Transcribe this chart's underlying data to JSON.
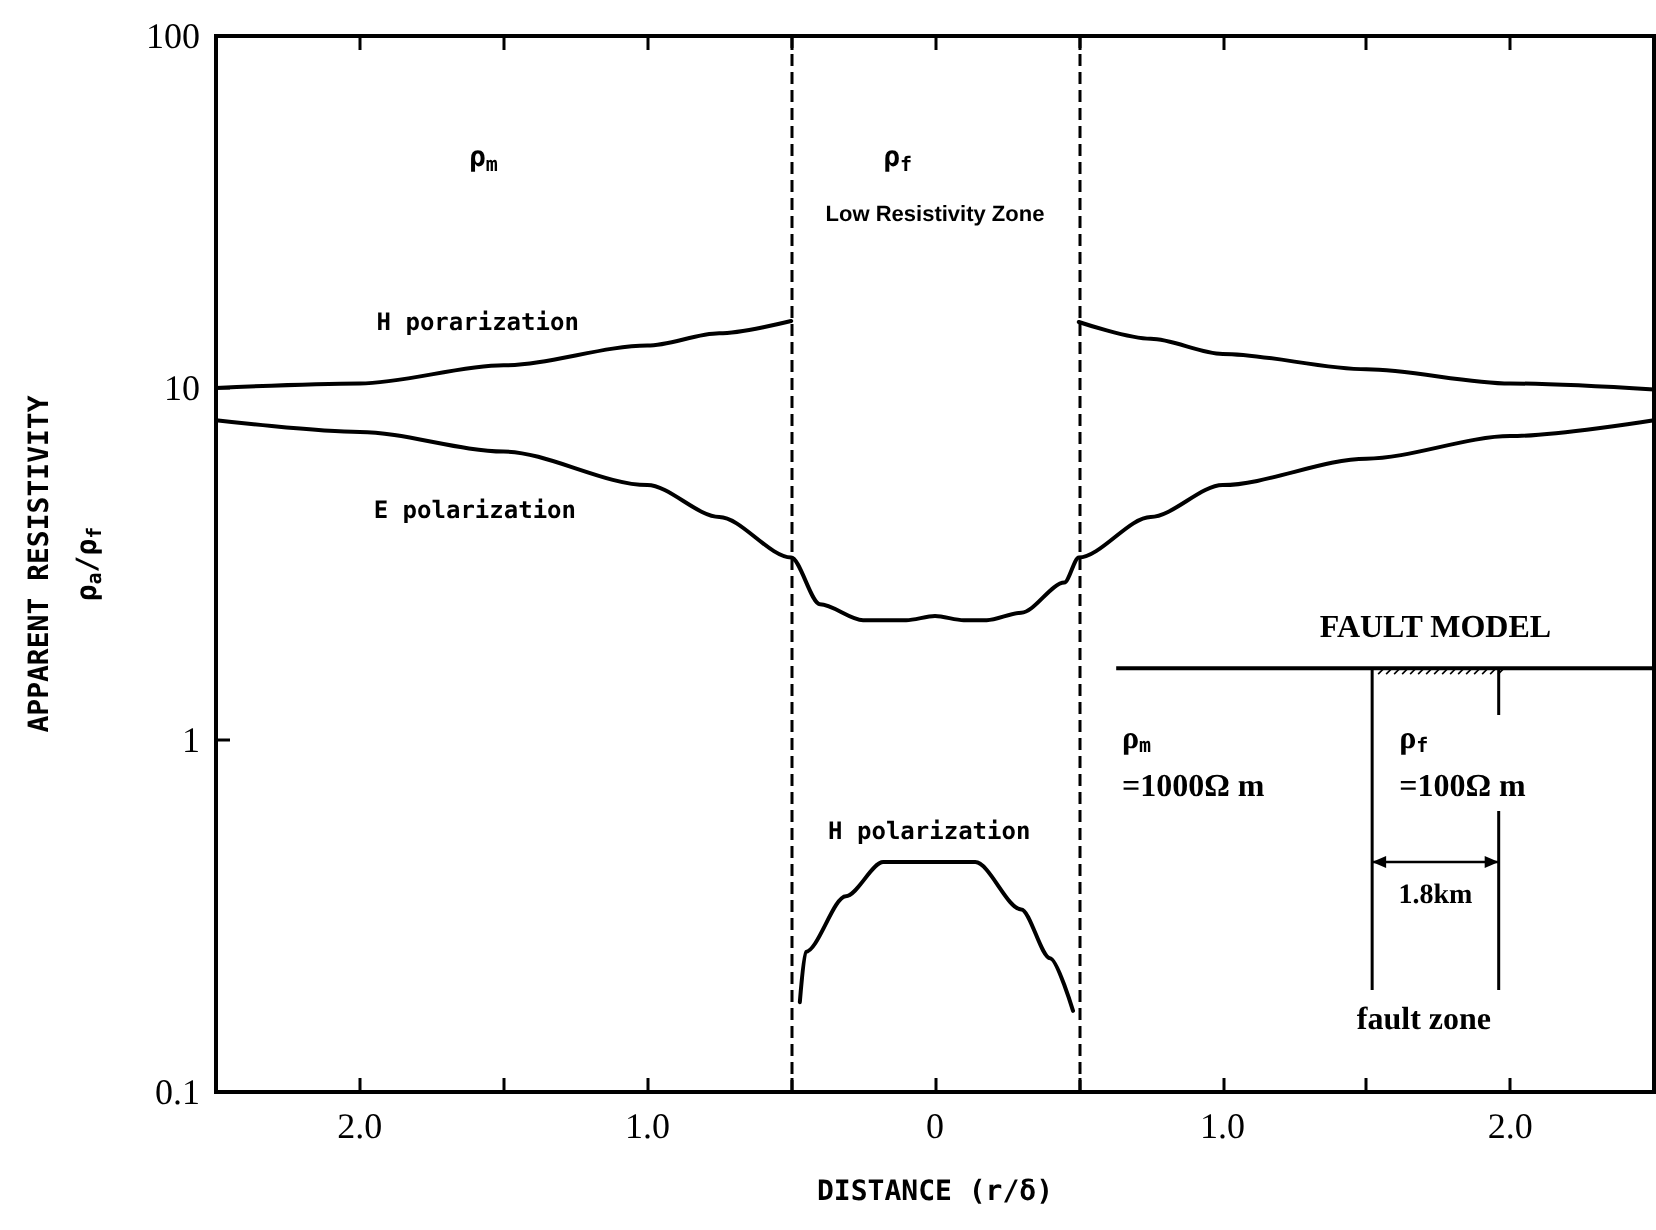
{
  "chart_data": {
    "type": "line",
    "xlabel": "DISTANCE (r/δ)",
    "ylabel": "APPARENT RESISTIVITY\nρ$_{a}$/ρ$_{f}$",
    "log": "y",
    "xlim": [
      -2.5,
      2.5
    ],
    "ylim": [
      0.1,
      100
    ],
    "xticks": [
      {
        "value": -2,
        "label": "2.0"
      },
      {
        "value": -1.5,
        "label": null
      },
      {
        "value": -1,
        "label": "1.0"
      },
      {
        "value": -0.5,
        "label": null
      },
      {
        "value": 0,
        "label": "0"
      },
      {
        "value": 0.5,
        "label": null
      },
      {
        "value": 1,
        "label": "1.0"
      },
      {
        "value": 1.5,
        "label": null
      },
      {
        "value": 2,
        "label": "2.0"
      }
    ],
    "yticks": [
      0.1,
      1,
      10,
      100
    ],
    "series": [
      {
        "name": "H porarization",
        "color": "#000000",
        "x": [
          -2.5,
          -2,
          -1.5,
          -1,
          -0.75,
          -0.5,
          0,
          0.5,
          0.75,
          1,
          1.5,
          2,
          2.5
        ],
        "values": [
          10,
          10.3,
          11.6,
          13.2,
          14.3,
          15.5,
          null,
          15.4,
          13.8,
          12.5,
          11.3,
          10.3,
          9.9
        ]
      },
      {
        "name": "E polarization",
        "color": "#000000",
        "x": [
          -2.5,
          -2,
          -1.5,
          -1,
          -0.75,
          -0.5,
          -0.4,
          -0.25,
          -0.1,
          0,
          0.1,
          0.18,
          0.3,
          0.45,
          0.5,
          0.75,
          1,
          1.5,
          2,
          2.5
        ],
        "values": [
          8.1,
          7.5,
          6.6,
          5.3,
          4.3,
          3.3,
          2.43,
          2.19,
          2.19,
          2.25,
          2.19,
          2.19,
          2.3,
          2.8,
          3.3,
          4.3,
          5.3,
          6.3,
          7.3,
          8.1
        ]
      },
      {
        "name": "H polarization",
        "color": "#000000",
        "x": [
          -0.47,
          -0.45,
          -0.31,
          -0.18,
          0,
          0.14,
          0.3,
          0.4,
          0.48
        ],
        "values": [
          0.18,
          0.25,
          0.36,
          0.45,
          0.45,
          0.45,
          0.33,
          0.24,
          0.17
        ]
      }
    ],
    "ref_lines": [
      {
        "axis": "x",
        "value": -0.5,
        "color": "#000000",
        "line_style": "dashed"
      },
      {
        "axis": "x",
        "value": 0.5,
        "color": "#000000",
        "line_style": "dashed"
      }
    ],
    "annotations": [
      "ρ$_{m}$",
      "ρ$_{f}$",
      "Low Resistivity Zone",
      "FAULT MODEL",
      "ρ$_{m}$\n=1000Ω m",
      "ρ$_{f}$\n=100Ω m",
      "1.8km",
      "fault zone"
    ]
  }
}
